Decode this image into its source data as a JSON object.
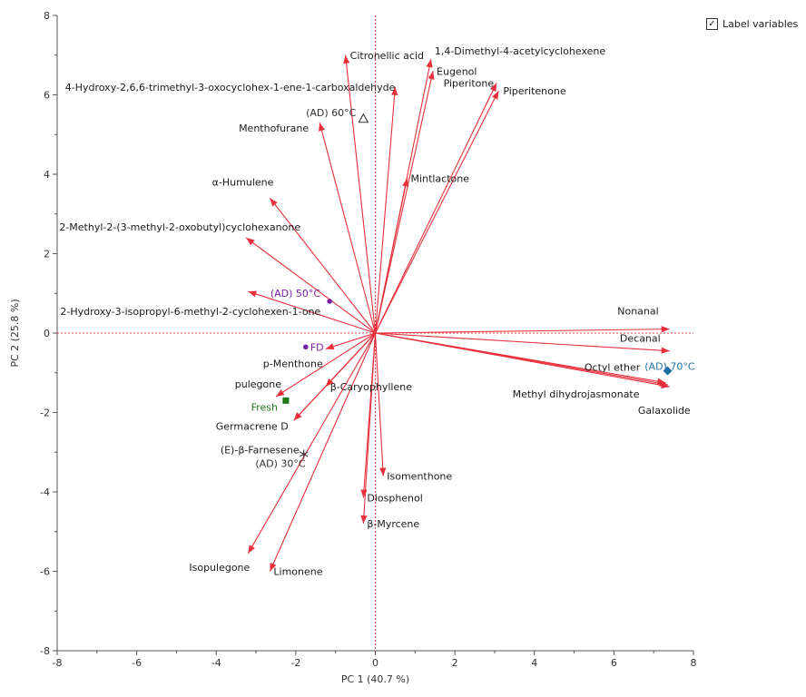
{
  "legend": {
    "checkbox_mark": "✓",
    "label": "Label variables",
    "checked": true
  },
  "chart_data": {
    "type": "scatter",
    "subtype": "pca-biplot",
    "xlabel": "PC 1  (40.7 %)",
    "ylabel": "PC 2  (25.8 %)",
    "xlim": [
      -8,
      8
    ],
    "ylim": [
      -8,
      8
    ],
    "xticks": [
      -8,
      -6,
      -4,
      -2,
      0,
      2,
      4,
      6,
      8
    ],
    "yticks": [
      -8,
      -6,
      -4,
      -2,
      0,
      2,
      4,
      6,
      8
    ],
    "variables": [
      {
        "name": "Citronellic acid",
        "x": -0.75,
        "y": 7.0,
        "anchor": "start",
        "dx": 5,
        "dy": 4
      },
      {
        "name": "1,4-Dimethyl-4-acetylcyclohexene",
        "x": 1.4,
        "y": 6.9,
        "anchor": "start",
        "dx": 4,
        "dy": -5
      },
      {
        "name": "Eugenol",
        "x": 1.45,
        "y": 6.6,
        "anchor": "start",
        "dx": 4,
        "dy": 4
      },
      {
        "name": "4-Hydroxy-2,6,6-trimethyl-3-oxocyclohex-1-ene-1-carboxaldehyde",
        "x": 0.5,
        "y": 6.2,
        "anchor": "end",
        "dx": 0,
        "dy": 4
      },
      {
        "name": "Piperitone",
        "x": 3.05,
        "y": 6.3,
        "anchor": "end",
        "dx": -3,
        "dy": 4
      },
      {
        "name": "Piperitenone",
        "x": 3.1,
        "y": 6.1,
        "anchor": "start",
        "dx": 5,
        "dy": 4
      },
      {
        "name": "Menthofurane",
        "x": -1.4,
        "y": 5.3,
        "anchor": "end",
        "dx": -12,
        "dy": 10
      },
      {
        "name": "Mintlactone",
        "x": 0.8,
        "y": 3.9,
        "anchor": "start",
        "dx": 4,
        "dy": 4
      },
      {
        "name": "α-Humulene",
        "x": -2.65,
        "y": 3.4,
        "anchor": "end",
        "dx": 4,
        "dy": -14
      },
      {
        "name": "2-Methyl-2-(3-methyl-2-oxobutyl)cyclohexanone",
        "x": -3.25,
        "y": 2.4,
        "anchor": "end",
        "dx": 60,
        "dy": -8
      },
      {
        "name": "2-Hydroxy-3-isopropyl-6-methyl-2-cyclohexen-1-one",
        "x": -3.2,
        "y": 1.05,
        "anchor": "end",
        "dx": 80,
        "dy": 26
      },
      {
        "name": "Nonanal",
        "x": 7.4,
        "y": 0.1,
        "anchor": "end",
        "dx": -12,
        "dy": -16
      },
      {
        "name": "Decanal",
        "x": 7.4,
        "y": -0.45,
        "anchor": "end",
        "dx": -10,
        "dy": -10
      },
      {
        "name": "Octyl ether",
        "x": 7.3,
        "y": -1.25,
        "anchor": "end",
        "dx": -28,
        "dy": -13
      },
      {
        "name": "Methyl dihydrojasmonate",
        "x": 7.35,
        "y": -1.3,
        "anchor": "end",
        "dx": -31,
        "dy": 14
      },
      {
        "name": "Galaxolide",
        "x": 7.4,
        "y": -1.35,
        "anchor": "end",
        "dx": 23,
        "dy": 30
      },
      {
        "name": "p-Menthone",
        "x": -1.25,
        "y": -0.4,
        "anchor": "end",
        "dx": -3,
        "dy": 20
      },
      {
        "name": "pulegone",
        "x": -2.5,
        "y": -1.6,
        "anchor": "end",
        "dx": 6,
        "dy": -10
      },
      {
        "name": "β-Caryophyllene",
        "x": -1.25,
        "y": -1.35,
        "anchor": "start",
        "dx": 5,
        "dy": 4
      },
      {
        "name": "Germacrene D",
        "x": -2.05,
        "y": -2.2,
        "anchor": "end",
        "dx": -6,
        "dy": 10
      },
      {
        "name": "(E)-β-Farnesene",
        "x": -2.05,
        "y": -2.2,
        "anchor": "end",
        "dx": 6,
        "dy": 36
      },
      {
        "name": "Isomenthone",
        "x": 0.2,
        "y": -3.6,
        "anchor": "start",
        "dx": 4,
        "dy": 4
      },
      {
        "name": "Diosphenol",
        "x": -0.3,
        "y": -4.15,
        "anchor": "start",
        "dx": 4,
        "dy": 4
      },
      {
        "name": "β-Myrcene",
        "x": -0.3,
        "y": -4.8,
        "anchor": "start",
        "dx": 4,
        "dy": 4
      },
      {
        "name": "Isopulegone",
        "x": -3.2,
        "y": -5.55,
        "anchor": "end",
        "dx": 2,
        "dy": 19
      },
      {
        "name": "Limonene",
        "x": -2.65,
        "y": -6.0,
        "anchor": "start",
        "dx": 4,
        "dy": 4
      }
    ],
    "observations": [
      {
        "name": "(AD) 60°C",
        "x": -0.3,
        "y": 5.4,
        "marker": "triangle",
        "color": "#333333",
        "label_color": "#333333",
        "anchor": "end",
        "dx": -8,
        "dy": -3
      },
      {
        "name": "(AD) 50°C",
        "x": -1.15,
        "y": 0.8,
        "marker": "circle",
        "color": "#7b1fa2",
        "label_color": "#7b1fa2",
        "anchor": "end",
        "dx": -10,
        "dy": -5
      },
      {
        "name": "FD",
        "x": -1.75,
        "y": -0.35,
        "marker": "circle",
        "color": "#7b1fa2",
        "label_color": "#7b1fa2",
        "anchor": "start",
        "dx": 5,
        "dy": 4
      },
      {
        "name": "Fresh",
        "x": -2.25,
        "y": -1.7,
        "marker": "square",
        "color": "#1b7a1b",
        "label_color": "#1b7a1b",
        "anchor": "end",
        "dx": -9,
        "dy": 11
      },
      {
        "name": "(AD) 30°C",
        "x": -1.8,
        "y": -3.05,
        "marker": "star",
        "color": "#333333",
        "label_color": "#333333",
        "anchor": "end",
        "dx": 2,
        "dy": 14
      },
      {
        "name": "(AD) 70°C",
        "x": 7.35,
        "y": -0.95,
        "marker": "diamond",
        "color": "#1f6fa3",
        "label_color": "#1f6fa3",
        "anchor": "end",
        "dx": 30,
        "dy": -1
      }
    ],
    "colors": {
      "arrow": "#e8303c",
      "zero_line": "#d94040",
      "axis": "#555555"
    }
  }
}
